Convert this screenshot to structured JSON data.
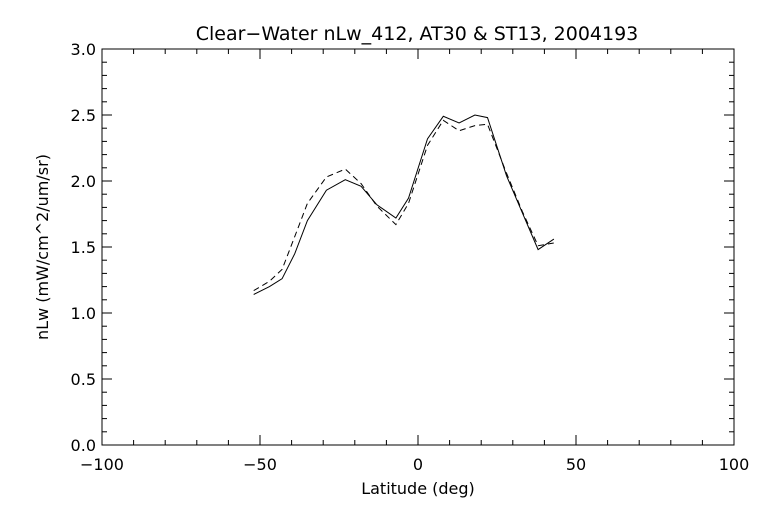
{
  "chart_data": {
    "type": "line",
    "title": "Clear−Water nLw_412, AT30 & ST13, 2004193",
    "xlabel": "Latitude (deg)",
    "ylabel": "nLw (mW/cm^2/um/sr)",
    "xlim": [
      -100,
      100
    ],
    "ylim": [
      0.0,
      3.0
    ],
    "x_ticks": [
      "−100",
      "−50",
      "0",
      "50",
      "100"
    ],
    "y_ticks": [
      "0.0",
      "0.5",
      "1.0",
      "1.5",
      "2.0",
      "2.5",
      "3.0"
    ],
    "grid": false,
    "series": [
      {
        "style": "solid",
        "x": [
          -52,
          -47,
          -43,
          -39,
          -35,
          -29,
          -23,
          -18,
          -13,
          -7,
          -3,
          3,
          8,
          13,
          18,
          22,
          28,
          33,
          38,
          43
        ],
        "y": [
          1.14,
          1.2,
          1.26,
          1.45,
          1.7,
          1.93,
          2.01,
          1.96,
          1.82,
          1.72,
          1.87,
          2.32,
          2.49,
          2.44,
          2.5,
          2.48,
          2.04,
          1.76,
          1.48,
          1.56
        ]
      },
      {
        "style": "dashed",
        "x": [
          -52,
          -47,
          -43,
          -39,
          -35,
          -29,
          -23,
          -18,
          -13,
          -7,
          -3,
          3,
          8,
          13,
          18,
          22,
          28,
          33,
          38,
          43
        ],
        "y": [
          1.17,
          1.24,
          1.33,
          1.58,
          1.83,
          2.03,
          2.09,
          1.98,
          1.81,
          1.67,
          1.83,
          2.27,
          2.46,
          2.38,
          2.42,
          2.43,
          2.06,
          1.77,
          1.51,
          1.53
        ]
      }
    ]
  }
}
